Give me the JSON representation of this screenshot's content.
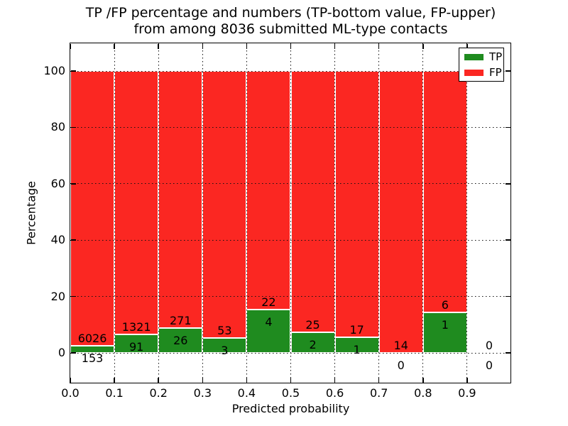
{
  "figure": {
    "title_line1": "TP /FP percentage and numbers (TP-bottom value, FP-upper)",
    "title_line2": "from among 8036 submitted ML-type contacts",
    "background": "#ffffff"
  },
  "chart_data": {
    "type": "bar",
    "stacked": true,
    "orientation": "vertical",
    "title": "TP /FP percentage and numbers (TP-bottom value, FP-upper) from among 8036 submitted ML-type contacts",
    "xlabel": "Predicted probability",
    "ylabel": "Percentage",
    "xlim": [
      0.0,
      1.0
    ],
    "ylim": [
      -11,
      110
    ],
    "grid": "dotted",
    "bin_width": 0.1,
    "bin_starts": [
      0.0,
      0.1,
      0.2,
      0.3,
      0.4,
      0.5,
      0.6,
      0.7,
      0.8,
      0.9
    ],
    "x_tick_labels": [
      "0.0",
      "0.1",
      "0.2",
      "0.3",
      "0.4",
      "0.5",
      "0.6",
      "0.7",
      "0.8",
      "0.9"
    ],
    "y_tick_values": [
      0,
      20,
      40,
      60,
      80,
      100
    ],
    "series": [
      {
        "name": "TP",
        "color": "#1f8b1f",
        "counts": [
          153,
          91,
          26,
          3,
          4,
          2,
          1,
          0,
          1,
          0
        ]
      },
      {
        "name": "FP",
        "color": "#fb2722",
        "counts": [
          6026,
          1321,
          271,
          53,
          22,
          25,
          17,
          14,
          6,
          0
        ]
      }
    ],
    "tp_percentages": [
      2.5,
      6.4,
      8.8,
      5.4,
      15.4,
      7.4,
      5.6,
      0.0,
      14.3,
      0.0
    ],
    "total_contacts": 8036,
    "bar_edge_color": "#ffffff",
    "legend": {
      "position": "upper right",
      "entries": [
        "TP",
        "FP"
      ]
    }
  }
}
